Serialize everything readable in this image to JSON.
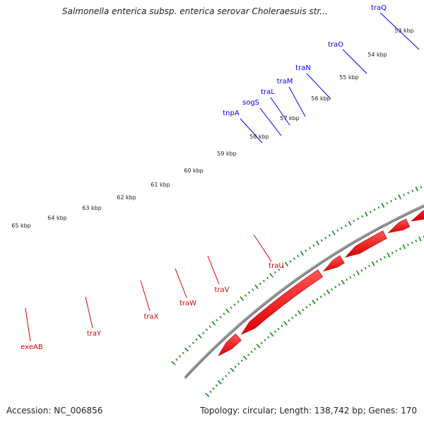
{
  "title": "Salmonella enterica subsp. enterica serovar Choleraesuis str...",
  "footer": {
    "accession": "Accession: NC_006856",
    "summary": "Topology: circular; Length: 138,742 bp; Genes: 170"
  },
  "scale_labels": [
    "53 kbp",
    "54 kbp",
    "55 kbp",
    "56 kbp",
    "57 kbp",
    "58 kbp",
    "59 kbp",
    "60 kbp",
    "61 kbp",
    "62 kbp",
    "63 kbp",
    "64 kbp",
    "65 kbp"
  ],
  "forward_genes": [
    {
      "name": "traQ",
      "color": "#0000ee"
    },
    {
      "name": "traO",
      "color": "#0000ee"
    },
    {
      "name": "traN",
      "color": "#0000ee"
    },
    {
      "name": "traM",
      "color": "#0000ee"
    },
    {
      "name": "traL",
      "color": "#0000ee"
    },
    {
      "name": "sogS",
      "color": "#0000ee"
    },
    {
      "name": "tnpA",
      "color": "#0000ee"
    }
  ],
  "reverse_genes": [
    {
      "name": "traU",
      "color": "#dd0000"
    },
    {
      "name": "traV",
      "color": "#dd0000"
    },
    {
      "name": "traW",
      "color": "#dd0000"
    },
    {
      "name": "traX",
      "color": "#dd0000"
    },
    {
      "name": "traY",
      "color": "#dd0000"
    },
    {
      "name": "exeAB",
      "color": "#dd0000"
    }
  ],
  "colors": {
    "forward_strand": "#0000ee",
    "reverse_strand": "#ee0000",
    "other": "#ee2288",
    "backbone": "#888888",
    "tick": "#118811"
  }
}
